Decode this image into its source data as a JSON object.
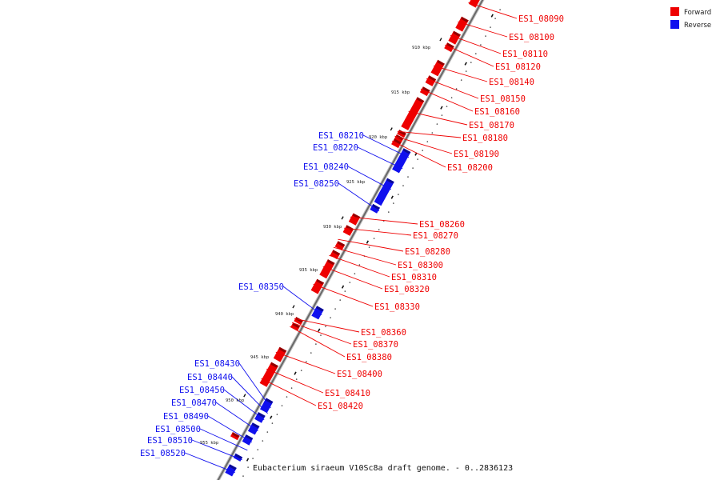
{
  "colors": {
    "forward": "#ee0000",
    "reverse": "#1010ee",
    "axis": "#999999",
    "text": "#111111"
  },
  "legend": {
    "forward_label": "Forward",
    "reverse_label": "Reverse"
  },
  "caption": "Eubacterium siraeum V10Sc8a draft genome. - 0..2836123",
  "scale_labels": [
    "910 kbp",
    "915 kbp",
    "920 kbp",
    "925 kbp",
    "930 kbp",
    "935 kbp",
    "940 kbp",
    "945 kbp",
    "950 kbp",
    "955 kbp"
  ],
  "forward_genes": [
    "ES1_08090",
    "ES1_08100",
    "ES1_08110",
    "ES1_08120",
    "ES1_08140",
    "ES1_08150",
    "ES1_08160",
    "ES1_08170",
    "ES1_08180",
    "ES1_08190",
    "ES1_08200",
    "ES1_08260",
    "ES1_08270",
    "ES1_08280",
    "ES1_08300",
    "ES1_08310",
    "ES1_08320",
    "ES1_08330",
    "ES1_08360",
    "ES1_08370",
    "ES1_08380",
    "ES1_08400",
    "ES1_08410",
    "ES1_08420"
  ],
  "reverse_genes": [
    "ES1_08210",
    "ES1_08220",
    "ES1_08240",
    "ES1_08250",
    "ES1_08350",
    "ES1_08430",
    "ES1_08440",
    "ES1_08450",
    "ES1_08470",
    "ES1_08490",
    "ES1_08500",
    "ES1_08510",
    "ES1_08520"
  ]
}
